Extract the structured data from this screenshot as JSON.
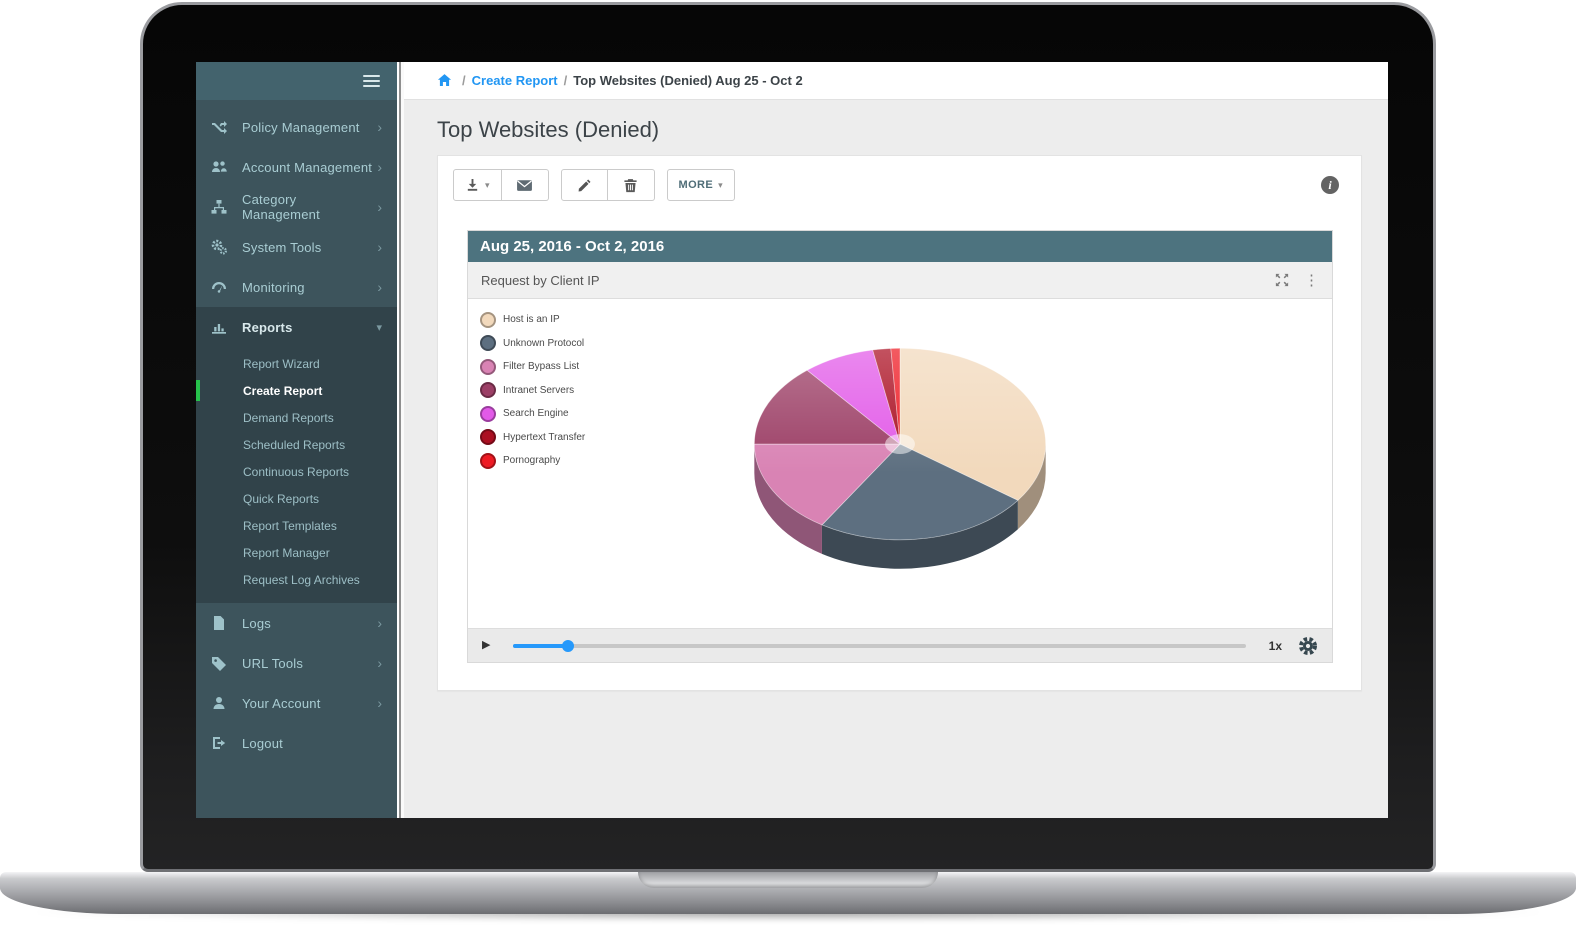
{
  "colors": {
    "sidebar_bg": "#3d545c",
    "sidebar_header_bg": "#43636d",
    "sidebar_expanded_bg": "#31434a",
    "accent_green": "#27c24c",
    "link_blue": "#2196f3",
    "header_teal": "#4d737f",
    "slider_blue": "#2699fb"
  },
  "sidebar": {
    "items": [
      {
        "label": "Policy Management",
        "icon": "shuffle-icon"
      },
      {
        "label": "Account Management",
        "icon": "users-icon"
      },
      {
        "label": "Category Management",
        "icon": "sitemap-icon"
      },
      {
        "label": "System Tools",
        "icon": "cogs-icon"
      },
      {
        "label": "Monitoring",
        "icon": "gauge-icon"
      }
    ],
    "reports": {
      "label": "Reports",
      "icon": "bar-chart-icon",
      "expanded": true,
      "subitems": [
        "Report Wizard",
        "Create Report",
        "Demand Reports",
        "Scheduled Reports",
        "Continuous Reports",
        "Quick Reports",
        "Report Templates",
        "Report Manager",
        "Request Log Archives"
      ],
      "active_subitem": "Create Report"
    },
    "bottom_items": [
      {
        "label": "Logs",
        "icon": "file-icon"
      },
      {
        "label": "URL Tools",
        "icon": "tag-icon"
      },
      {
        "label": "Your Account",
        "icon": "user-icon"
      },
      {
        "label": "Logout",
        "icon": "logout-icon"
      }
    ]
  },
  "breadcrumb": {
    "sep": "/",
    "link": "Create Report",
    "current": "Top Websites (Denied) Aug 25 - Oct 2"
  },
  "page": {
    "title": "Top Websites (Denied)"
  },
  "toolbar": {
    "more_label": "MORE"
  },
  "widget": {
    "header": "Aug 25, 2016 - Oct 2, 2016",
    "subheader": "Request by Client IP",
    "timeline": {
      "progress_percent": 7.5,
      "speed_label": "1x"
    }
  },
  "chart_data": {
    "type": "pie",
    "style": "3d",
    "title": "Request by Client IP",
    "date_range": "Aug 25, 2016 - Oct 2, 2016",
    "legend_position": "left",
    "start_angle_deg": 0,
    "slices": [
      {
        "label": "Host is an IP",
        "value": 35,
        "color": "#f2d9bc"
      },
      {
        "label": "Unknown Protocol",
        "value": 24,
        "color": "#5d6f80"
      },
      {
        "label": "Filter Bypass List",
        "value": 16,
        "color": "#d983b4"
      },
      {
        "label": "Intranet Servers",
        "value": 14,
        "color": "#9c3f66"
      },
      {
        "label": "Search Engine",
        "value": 8,
        "color": "#e25ae8"
      },
      {
        "label": "Hypertext Transfer",
        "value": 2,
        "color": "#ab0f22"
      },
      {
        "label": "Pornography",
        "value": 1,
        "color": "#ee1b24"
      }
    ]
  }
}
